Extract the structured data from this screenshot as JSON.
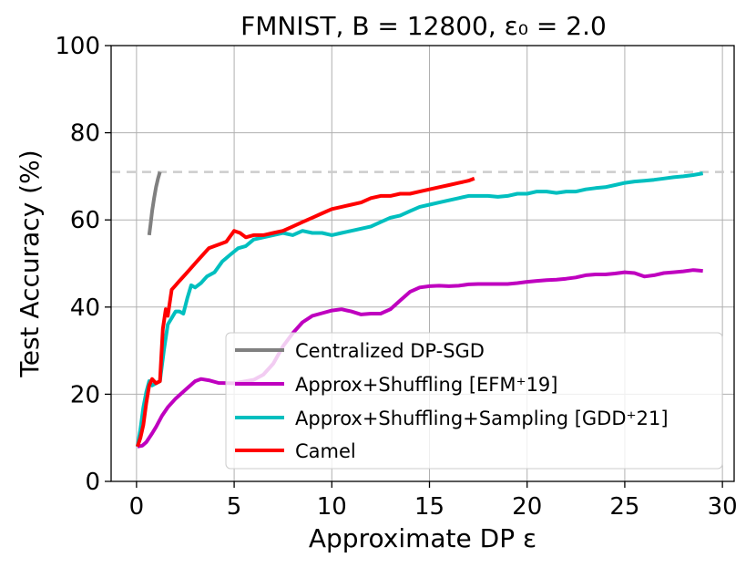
{
  "chart_data": {
    "type": "line",
    "title": "FMNIST, B = 12800, ε₀ = 2.0",
    "xlabel": "Approximate DP ε",
    "ylabel": "Test Accuracy (%)",
    "xlim": [
      -1.3,
      30.6
    ],
    "ylim": [
      0,
      100
    ],
    "xticks": [
      0,
      5,
      10,
      15,
      20,
      25,
      30
    ],
    "yticks": [
      0,
      20,
      40,
      60,
      80,
      100
    ],
    "grid": true,
    "legend_position": "lower-right",
    "reference_line": {
      "y": 71,
      "style": "dashed",
      "color": "#cccccc"
    },
    "series": [
      {
        "name": "Centralized DP-SGD",
        "color": "#808080",
        "x": [
          0.65,
          0.72,
          0.8,
          0.9,
          1.0,
          1.1,
          1.2
        ],
        "y": [
          56.5,
          59,
          62,
          65,
          67.5,
          69.5,
          71
        ]
      },
      {
        "name": "Approx+Shuffling [EFM⁺19]",
        "color": "#bf00bf",
        "x": [
          0.05,
          0.3,
          0.5,
          0.8,
          1.0,
          1.3,
          1.6,
          2.0,
          2.5,
          3.0,
          3.3,
          3.7,
          4.2,
          5.0,
          6.0,
          6.5,
          7.0,
          7.5,
          8.0,
          8.5,
          9.0,
          9.5,
          10.0,
          10.5,
          11.0,
          11.5,
          12.0,
          12.5,
          13.0,
          13.5,
          14.0,
          14.5,
          15.0,
          15.5,
          16.0,
          16.5,
          17.0,
          17.5,
          18.0,
          18.5,
          19.0,
          19.5,
          20.0,
          20.5,
          21.0,
          21.5,
          22.0,
          22.5,
          23.0,
          23.5,
          24.0,
          24.5,
          25.0,
          25.5,
          26.0,
          26.5,
          27.0,
          27.5,
          28.0,
          28.5,
          29.0
        ],
        "y": [
          8.0,
          8.2,
          9.0,
          11.0,
          12.5,
          15.0,
          17.0,
          19.0,
          21.0,
          23.0,
          23.5,
          23.2,
          22.6,
          22.5,
          23.3,
          24.5,
          27.0,
          31.0,
          34.0,
          36.5,
          38.0,
          38.6,
          39.2,
          39.5,
          39.0,
          38.3,
          38.5,
          38.5,
          39.5,
          41.5,
          43.5,
          44.5,
          44.8,
          44.9,
          44.8,
          44.9,
          45.2,
          45.3,
          45.3,
          45.3,
          45.3,
          45.5,
          45.8,
          46.0,
          46.2,
          46.3,
          46.5,
          46.8,
          47.3,
          47.5,
          47.5,
          47.7,
          48.0,
          47.8,
          47.0,
          47.3,
          47.8,
          48.0,
          48.2,
          48.5,
          48.3
        ]
      },
      {
        "name": "Approx+Shuffling+Sampling [GDD⁺21]",
        "color": "#00bfbf",
        "x": [
          0.05,
          0.2,
          0.35,
          0.5,
          0.65,
          0.8,
          1.0,
          1.2,
          1.4,
          1.6,
          1.8,
          2.0,
          2.2,
          2.4,
          2.6,
          2.8,
          3.0,
          3.3,
          3.6,
          4.0,
          4.4,
          4.8,
          5.2,
          5.6,
          6.0,
          6.5,
          7.0,
          7.5,
          8.0,
          8.5,
          9.0,
          9.5,
          10.0,
          10.5,
          11.0,
          11.5,
          12.0,
          12.5,
          13.0,
          13.5,
          14.0,
          14.5,
          15.0,
          15.5,
          16.0,
          16.5,
          17.0,
          17.5,
          18.0,
          18.5,
          19.0,
          19.5,
          20.0,
          20.5,
          21.0,
          21.5,
          22.0,
          22.5,
          23.0,
          23.5,
          24.0,
          24.5,
          25.0,
          25.5,
          26.0,
          26.5,
          27.0,
          27.5,
          28.0,
          28.5,
          29.0
        ],
        "y": [
          8.0,
          12.0,
          17.0,
          20.5,
          23.0,
          22.0,
          22.5,
          23.0,
          30.0,
          36.0,
          37.5,
          39.0,
          39.0,
          38.5,
          42.0,
          45.0,
          44.5,
          45.5,
          47.0,
          48.0,
          50.5,
          52.0,
          53.5,
          54.0,
          55.5,
          56.0,
          56.5,
          57.0,
          56.5,
          57.5,
          57.0,
          57.0,
          56.5,
          57.0,
          57.5,
          58.0,
          58.5,
          59.5,
          60.5,
          61.0,
          62.0,
          63.0,
          63.5,
          64.0,
          64.5,
          65.0,
          65.5,
          65.5,
          65.5,
          65.3,
          65.5,
          66.0,
          66.0,
          66.5,
          66.5,
          66.2,
          66.5,
          66.5,
          67.0,
          67.3,
          67.5,
          68.0,
          68.5,
          68.8,
          69.0,
          69.2,
          69.5,
          69.8,
          70.0,
          70.3,
          70.7
        ]
      },
      {
        "name": "Camel",
        "color": "#ff0000",
        "x": [
          0.05,
          0.2,
          0.35,
          0.5,
          0.65,
          0.8,
          1.0,
          1.2,
          1.35,
          1.5,
          1.6,
          1.8,
          2.0,
          2.2,
          2.5,
          2.8,
          3.1,
          3.4,
          3.7,
          4.0,
          4.3,
          4.6,
          5.0,
          5.3,
          5.6,
          6.0,
          6.5,
          7.0,
          7.5,
          8.0,
          8.5,
          9.0,
          9.5,
          10.0,
          10.5,
          11.0,
          11.5,
          12.0,
          12.5,
          13.0,
          13.5,
          14.0,
          14.5,
          15.0,
          15.5,
          16.0,
          16.5,
          17.0,
          17.3
        ],
        "y": [
          8.0,
          10.0,
          13.0,
          18.0,
          22.0,
          23.5,
          22.5,
          23.0,
          35.0,
          39.5,
          38.0,
          44.0,
          45.0,
          46.0,
          47.5,
          49.0,
          50.5,
          52.0,
          53.5,
          54.0,
          54.5,
          55.0,
          57.5,
          57.0,
          56.0,
          56.5,
          56.5,
          57.0,
          57.5,
          58.5,
          59.5,
          60.5,
          61.5,
          62.5,
          63.0,
          63.5,
          64.0,
          65.0,
          65.5,
          65.5,
          66.0,
          66.0,
          66.5,
          67.0,
          67.5,
          68.0,
          68.5,
          69.0,
          69.5
        ]
      }
    ]
  }
}
